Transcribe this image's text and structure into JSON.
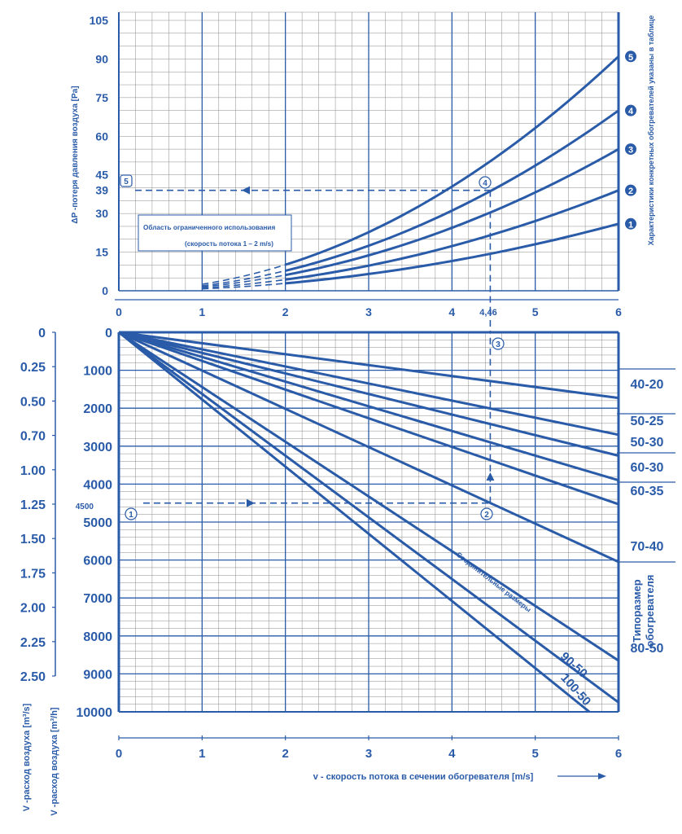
{
  "chart_data": [
    {
      "type": "line",
      "title": "",
      "xlabel": "",
      "ylabel": "ΔP -потеря давления воздуха [Pa]",
      "right_note": "Характеристики конкретных обогревателей указаны в таблице",
      "x_ticks": [
        "0",
        "1",
        "2",
        "3",
        "4",
        "5",
        "6"
      ],
      "y_ticks": [
        "0",
        "15",
        "30",
        "39",
        "45",
        "60",
        "75",
        "90",
        "105"
      ],
      "xlim": [
        0,
        6
      ],
      "ylim": [
        0,
        105
      ],
      "marker_x_label": "4,46",
      "annotation_title": "Область ограниченного использования",
      "annotation_sub": "(скорость потока 1 – 2 m/s)",
      "pressure_marker": 39,
      "pressure_marker_tag": "5",
      "intersection_tag": "4",
      "series": [
        {
          "name": "1",
          "x": [
            1,
            2,
            3,
            4,
            5,
            6
          ],
          "y": [
            0.5,
            1.8,
            5.2,
            11,
            18,
            26
          ]
        },
        {
          "name": "2",
          "x": [
            1,
            2,
            3,
            4,
            5,
            6
          ],
          "y": [
            1.0,
            4.2,
            9.5,
            17,
            27,
            39
          ]
        },
        {
          "name": "3",
          "x": [
            1,
            2,
            3,
            4,
            5,
            6
          ],
          "y": [
            1.5,
            6.2,
            14,
            25,
            38,
            55
          ]
        },
        {
          "name": "4",
          "x": [
            1,
            2,
            3,
            4,
            5,
            6
          ],
          "y": [
            2.0,
            8.2,
            19,
            33,
            50,
            70
          ]
        },
        {
          "name": "5",
          "x": [
            1,
            2,
            3,
            4,
            5,
            6
          ],
          "y": [
            3.0,
            11.5,
            25,
            42,
            64,
            91
          ]
        }
      ],
      "restricted_range_x": [
        1,
        2
      ]
    },
    {
      "type": "line",
      "title": "",
      "xlabel": "v - скорость потока в сечении обогревателя [m/s]",
      "ylabel_m3h": "V -расход воздуха [m³/h]",
      "ylabel_m3s": "V -расход воздуха [m³/s]",
      "x_ticks": [
        "0",
        "1",
        "2",
        "3",
        "4",
        "5",
        "6"
      ],
      "y_ticks_m3h": [
        "0",
        "1000",
        "2000",
        "3000",
        "4000",
        "5000",
        "6000",
        "7000",
        "8000",
        "9000",
        "10000"
      ],
      "y_ticks_m3s": [
        "0",
        "0.25",
        "0.50",
        "0.70",
        "1.00",
        "1.25",
        "1.50",
        "1.75",
        "2.00",
        "2.25",
        "2.50"
      ],
      "xlim": [
        0,
        6
      ],
      "ylim": [
        0,
        10000
      ],
      "flow_marker": 4500,
      "flow_marker_label": "4500",
      "flow_marker_tag": "1",
      "intersection_tag": "2",
      "up_tag": "3",
      "connection_sizes_label": "Соединительные размеры",
      "size_caption": "Типоразмер обогревателя",
      "series": [
        {
          "name": "40-20",
          "x": [
            0,
            6
          ],
          "y": [
            0,
            1730
          ]
        },
        {
          "name": "50-25",
          "x": [
            0,
            6
          ],
          "y": [
            0,
            2700
          ]
        },
        {
          "name": "50-30",
          "x": [
            0,
            6
          ],
          "y": [
            0,
            3250
          ]
        },
        {
          "name": "60-30",
          "x": [
            0,
            6
          ],
          "y": [
            0,
            3900
          ]
        },
        {
          "name": "60-35",
          "x": [
            0,
            6
          ],
          "y": [
            0,
            4530
          ]
        },
        {
          "name": "70-40",
          "x": [
            0,
            6
          ],
          "y": [
            0,
            6050
          ]
        },
        {
          "name": "80-50",
          "x": [
            0,
            6
          ],
          "y": [
            0,
            8650
          ]
        },
        {
          "name": "90-50",
          "x": [
            0,
            6
          ],
          "y": [
            0,
            9750
          ]
        },
        {
          "name": "100-50",
          "x": [
            0,
            5.65
          ],
          "y": [
            0,
            10000
          ]
        }
      ]
    }
  ]
}
